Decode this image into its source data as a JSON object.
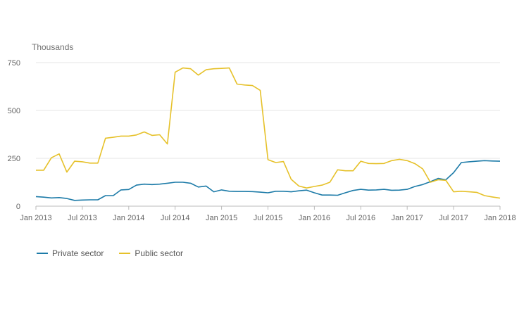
{
  "chart_data": {
    "type": "line",
    "ylabel": "Thousands",
    "ylim": [
      0,
      750
    ],
    "yticks": [
      0,
      250,
      500,
      750
    ],
    "xlim": [
      "2013-01",
      "2018-01"
    ],
    "xticks": [
      {
        "date": "2013-01",
        "label": "Jan 2013"
      },
      {
        "date": "2013-07",
        "label": "Jul 2013"
      },
      {
        "date": "2014-01",
        "label": "Jan 2014"
      },
      {
        "date": "2014-07",
        "label": "Jul 2014"
      },
      {
        "date": "2015-01",
        "label": "Jan 2015"
      },
      {
        "date": "2015-07",
        "label": "Jul 2015"
      },
      {
        "date": "2016-01",
        "label": "Jan 2016"
      },
      {
        "date": "2016-07",
        "label": "Jul 2016"
      },
      {
        "date": "2017-01",
        "label": "Jan 2017"
      },
      {
        "date": "2017-07",
        "label": "Jul 2017"
      },
      {
        "date": "2018-01",
        "label": "Jan 2018"
      }
    ],
    "grid": true,
    "legend_position": "bottom-left",
    "x": [
      "2013-01",
      "2013-02",
      "2013-03",
      "2013-04",
      "2013-05",
      "2013-06",
      "2013-07",
      "2013-08",
      "2013-09",
      "2013-10",
      "2013-11",
      "2013-12",
      "2014-01",
      "2014-02",
      "2014-03",
      "2014-04",
      "2014-05",
      "2014-06",
      "2014-07",
      "2014-08",
      "2014-09",
      "2014-10",
      "2014-11",
      "2014-12",
      "2015-01",
      "2015-02",
      "2015-03",
      "2015-04",
      "2015-05",
      "2015-06",
      "2015-07",
      "2015-08",
      "2015-09",
      "2015-10",
      "2015-11",
      "2015-12",
      "2016-01",
      "2016-02",
      "2016-03",
      "2016-04",
      "2016-05",
      "2016-06",
      "2016-07",
      "2016-08",
      "2016-09",
      "2016-10",
      "2016-11",
      "2016-12",
      "2017-01",
      "2017-02",
      "2017-03",
      "2017-04",
      "2017-05",
      "2017-06",
      "2017-07",
      "2017-08",
      "2017-09",
      "2017-10",
      "2017-11",
      "2017-12",
      "2018-01"
    ],
    "series": [
      {
        "name": "Private sector",
        "color": "#1d7ba8",
        "values": [
          50,
          47,
          43,
          45,
          40,
          30,
          32,
          33,
          33,
          55,
          55,
          85,
          87,
          110,
          115,
          113,
          115,
          120,
          125,
          125,
          120,
          100,
          105,
          75,
          85,
          78,
          77,
          77,
          76,
          73,
          70,
          78,
          78,
          75,
          80,
          84,
          70,
          58,
          58,
          57,
          70,
          82,
          88,
          84,
          85,
          88,
          83,
          84,
          88,
          103,
          113,
          128,
          145,
          138,
          175,
          228,
          232,
          235,
          238,
          236,
          235
        ]
      },
      {
        "name": "Public sector",
        "color": "#e6c12a",
        "values": [
          188,
          188,
          253,
          273,
          178,
          235,
          232,
          225,
          225,
          355,
          360,
          366,
          366,
          372,
          388,
          370,
          373,
          325,
          700,
          722,
          718,
          685,
          713,
          718,
          720,
          722,
          638,
          633,
          630,
          605,
          243,
          228,
          233,
          140,
          105,
          95,
          103,
          110,
          125,
          190,
          185,
          185,
          235,
          223,
          222,
          223,
          238,
          245,
          238,
          222,
          195,
          125,
          138,
          135,
          75,
          78,
          75,
          72,
          55,
          48,
          42
        ]
      }
    ]
  }
}
